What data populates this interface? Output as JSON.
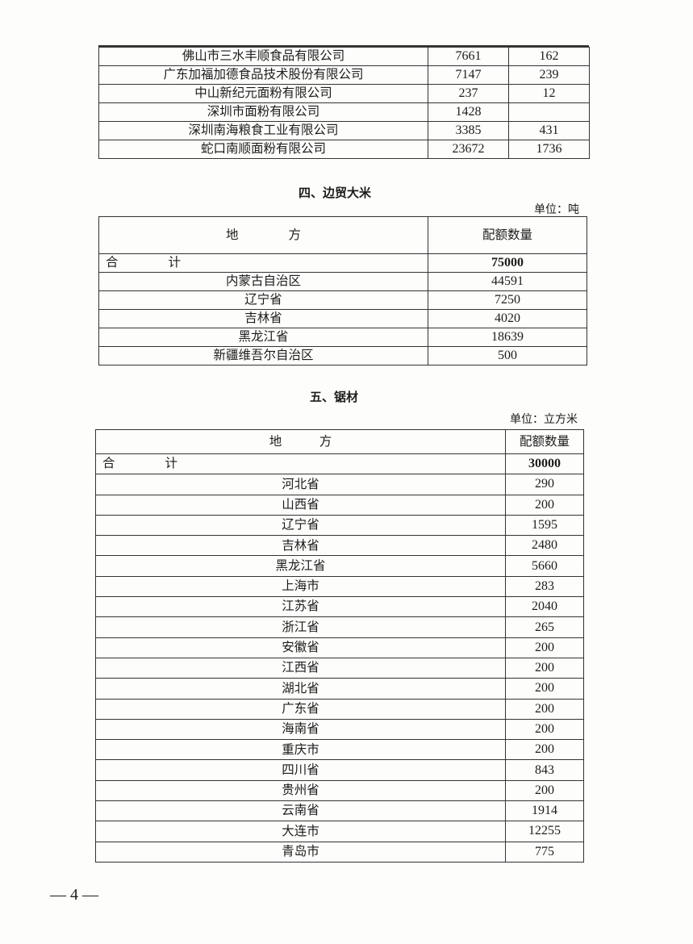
{
  "table_flour_companies": {
    "rows": [
      {
        "name": "佛山市三水丰顺食品有限公司",
        "a": "7661",
        "b": "162"
      },
      {
        "name": "广东加福加德食品技术股份有限公司",
        "a": "7147",
        "b": "239"
      },
      {
        "name": "中山新纪元面粉有限公司",
        "a": "237",
        "b": "12"
      },
      {
        "name": "深圳市面粉有限公司",
        "a": "1428",
        "b": ""
      },
      {
        "name": "深圳南海粮食工业有限公司",
        "a": "3385",
        "b": "431"
      },
      {
        "name": "蛇口南顺面粉有限公司",
        "a": "23672",
        "b": "1736"
      }
    ]
  },
  "section4": {
    "title": "四、边贸大米",
    "unit": "单位：吨",
    "header": {
      "place": "地　　　　方",
      "quota": "配额数量"
    },
    "total": {
      "label": "合　　　　计",
      "value": "75000"
    },
    "rows": [
      {
        "name": "内蒙古自治区",
        "value": "44591"
      },
      {
        "name": "辽宁省",
        "value": "7250"
      },
      {
        "name": "吉林省",
        "value": "4020"
      },
      {
        "name": "黑龙江省",
        "value": "18639"
      },
      {
        "name": "新疆维吾尔自治区",
        "value": "500"
      }
    ]
  },
  "section5": {
    "title": "五、锯材",
    "unit": "单位：立方米",
    "header": {
      "place": "地　　　方",
      "quota": "配额数量"
    },
    "total": {
      "label": "合　　　　计",
      "value": "30000"
    },
    "rows": [
      {
        "name": "河北省",
        "value": "290"
      },
      {
        "name": "山西省",
        "value": "200"
      },
      {
        "name": "辽宁省",
        "value": "1595"
      },
      {
        "name": "吉林省",
        "value": "2480"
      },
      {
        "name": "黑龙江省",
        "value": "5660"
      },
      {
        "name": "上海市",
        "value": "283"
      },
      {
        "name": "江苏省",
        "value": "2040"
      },
      {
        "name": "浙江省",
        "value": "265"
      },
      {
        "name": "安徽省",
        "value": "200"
      },
      {
        "name": "江西省",
        "value": "200"
      },
      {
        "name": "湖北省",
        "value": "200"
      },
      {
        "name": "广东省",
        "value": "200"
      },
      {
        "name": "海南省",
        "value": "200"
      },
      {
        "name": "重庆市",
        "value": "200"
      },
      {
        "name": "四川省",
        "value": "843"
      },
      {
        "name": "贵州省",
        "value": "200"
      },
      {
        "name": "云南省",
        "value": "1914"
      },
      {
        "name": "大连市",
        "value": "12255"
      },
      {
        "name": "青岛市",
        "value": "775"
      }
    ]
  },
  "footer": {
    "page_number": "— 4 —"
  }
}
